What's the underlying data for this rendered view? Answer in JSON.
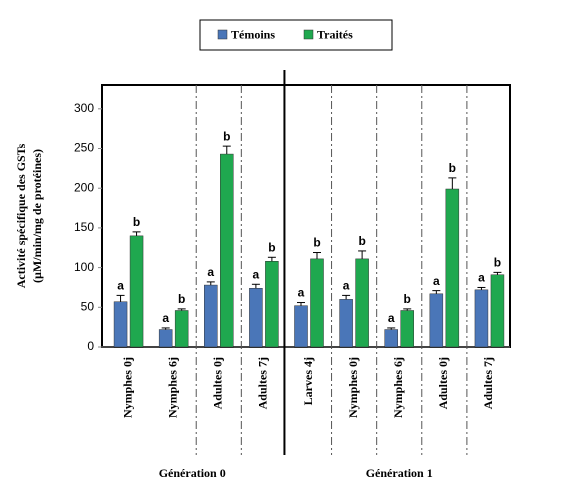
{
  "chart_data": {
    "type": "bar",
    "y_label": [
      "Activité spécifique des GSTs",
      "(µM/min/mg de protéines)"
    ],
    "categories": [
      "Nymphes 0j",
      "Nymphes 6j",
      "Adultes 0j",
      "Adultes 7j",
      "Larves 4j",
      "Nymphes 0j",
      "Nymphes 6j",
      "Adultes 0j",
      "Adultes 7j"
    ],
    "groups": [
      {
        "label": "Génération 0",
        "span": [
          0,
          3
        ]
      },
      {
        "label": "Génération 1",
        "span": [
          4,
          8
        ]
      }
    ],
    "series": [
      {
        "name": "Témoins",
        "color": "#4a76b8",
        "values": [
          57,
          22,
          78,
          74,
          52,
          60,
          22,
          67,
          72
        ],
        "errors": [
          8,
          2,
          4,
          5,
          4,
          5,
          2,
          4,
          3
        ],
        "letters": [
          "a",
          "a",
          "a",
          "a",
          "a",
          "a",
          "a",
          "a",
          "a"
        ]
      },
      {
        "name": "Traités",
        "color": "#1fa84f",
        "values": [
          140,
          46,
          243,
          108,
          111,
          111,
          46,
          199,
          91
        ],
        "errors": [
          5,
          2,
          10,
          5,
          8,
          10,
          2,
          14,
          3
        ],
        "letters": [
          "b",
          "b",
          "b",
          "b",
          "b",
          "b",
          "b",
          "b",
          "b"
        ]
      }
    ],
    "ylim": [
      0,
      330
    ],
    "yticks": [
      0,
      50,
      100,
      150,
      200,
      250,
      300
    ],
    "legend": "top"
  }
}
